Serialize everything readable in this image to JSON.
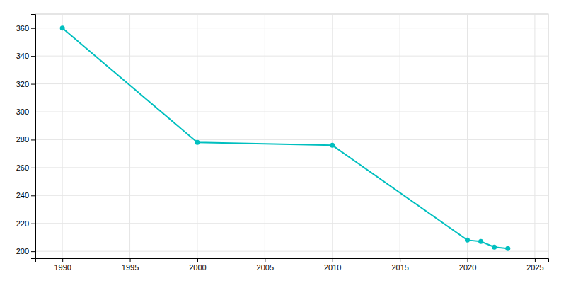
{
  "chart_data": {
    "type": "line",
    "x": [
      1990,
      2000,
      2010,
      2020,
      2021,
      2022,
      2023
    ],
    "values": [
      360,
      278,
      276,
      208,
      207,
      203,
      202
    ],
    "color": "#00BFBF",
    "marker": "circle",
    "xlim": [
      1988,
      2026
    ],
    "ylim": [
      195,
      370
    ],
    "xticks": [
      1990,
      1995,
      2000,
      2005,
      2010,
      2015,
      2020,
      2025
    ],
    "yticks": [
      200,
      220,
      240,
      260,
      280,
      300,
      320,
      340,
      360
    ],
    "grid": true
  }
}
